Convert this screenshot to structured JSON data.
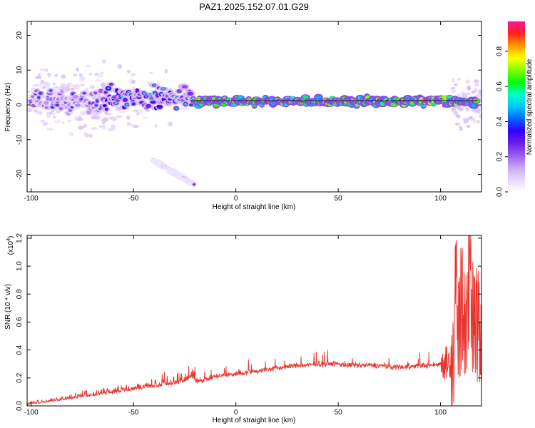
{
  "figure": {
    "title": "PAZ1.2025.152.07.01.G29"
  },
  "chart_data": [
    {
      "type": "heatmap",
      "xlabel": "Height of straight line (km)",
      "ylabel": "Frequency (Hz)",
      "xlim": [
        -102,
        120
      ],
      "ylim": [
        -25,
        24
      ],
      "xticks": [
        "-100",
        "-50",
        "0",
        "50",
        "100"
      ],
      "xtick_values": [
        -100,
        -50,
        0,
        50,
        100
      ],
      "yticks": [
        "20",
        "10",
        "0",
        "-10",
        "-20"
      ],
      "ytick_values": [
        20,
        10,
        0,
        -10,
        -20
      ],
      "colorbar": {
        "label": "Normalized spectral amplitude",
        "range": [
          0,
          0.97
        ],
        "ticks": [
          "0.0",
          "0.2",
          "0.4",
          "0.6",
          "0.8"
        ],
        "tick_values": [
          0.0,
          0.2,
          0.4,
          0.6,
          0.8
        ],
        "colormap": [
          "#ffffff",
          "#e6d8fb",
          "#c9a8f5",
          "#9b5cf0",
          "#6a1fe8",
          "#3300ff",
          "#0066ff",
          "#00c8ff",
          "#00ffc8",
          "#00ff00",
          "#80ff00",
          "#ffff00",
          "#ff9900",
          "#ff2222",
          "#ff1493"
        ]
      },
      "ridges": [
        {
          "x_start": -100,
          "x_end": -65,
          "freq": 1.0,
          "amplitude": 0.3
        },
        {
          "x_start": -65,
          "x_end": -20,
          "freq": 2.0,
          "amplitude": 0.45
        },
        {
          "x_start": -20,
          "x_end": 118,
          "freq": 1.0,
          "amplitude": 0.95
        },
        {
          "x_start": -40,
          "x_end": -20,
          "freq": -16,
          "amplitude": 0.2
        }
      ],
      "reference_line": {
        "x_start": -22,
        "x_end": 118,
        "freq": 1.2
      }
    },
    {
      "type": "line",
      "xlabel": "Height of straight line (km)",
      "ylabel": "SNR (10 * v/v)",
      "multiplier_label": "(x10",
      "multiplier_exponent": "4",
      "xlim": [
        -102,
        120
      ],
      "ylim": [
        0,
        1.22
      ],
      "xticks": [
        "-100",
        "-50",
        "0",
        "50",
        "100"
      ],
      "xtick_values": [
        -100,
        -50,
        0,
        50,
        100
      ],
      "yticks": [
        "0.0",
        "0.2",
        "0.4",
        "0.6",
        "0.8",
        "1.0",
        "1.2"
      ],
      "ytick_values": [
        0.0,
        0.2,
        0.4,
        0.6,
        0.8,
        1.0,
        1.2
      ],
      "grid": false,
      "series": [
        {
          "color": "#e8322c",
          "x": [
            -102,
            -95,
            -90,
            -85,
            -80,
            -75,
            -70,
            -65,
            -60,
            -55,
            -50,
            -45,
            -40,
            -35,
            -30,
            -25,
            -22,
            -20,
            -15,
            -10,
            -5,
            0,
            5,
            10,
            15,
            20,
            25,
            30,
            35,
            40,
            45,
            50,
            55,
            60,
            65,
            70,
            75,
            80,
            85,
            90,
            95,
            100,
            105,
            108,
            110,
            112,
            114,
            116,
            118,
            120
          ],
          "values": [
            0.01,
            0.02,
            0.03,
            0.04,
            0.05,
            0.06,
            0.07,
            0.08,
            0.09,
            0.1,
            0.11,
            0.12,
            0.13,
            0.14,
            0.15,
            0.17,
            0.2,
            0.18,
            0.19,
            0.21,
            0.22,
            0.23,
            0.24,
            0.25,
            0.26,
            0.27,
            0.28,
            0.29,
            0.29,
            0.3,
            0.3,
            0.3,
            0.29,
            0.29,
            0.29,
            0.29,
            0.28,
            0.28,
            0.28,
            0.29,
            0.29,
            0.3,
            0.32,
            0.5,
            0.7,
            0.65,
            0.75,
            0.6,
            0.55,
            0.57
          ]
        }
      ]
    }
  ]
}
